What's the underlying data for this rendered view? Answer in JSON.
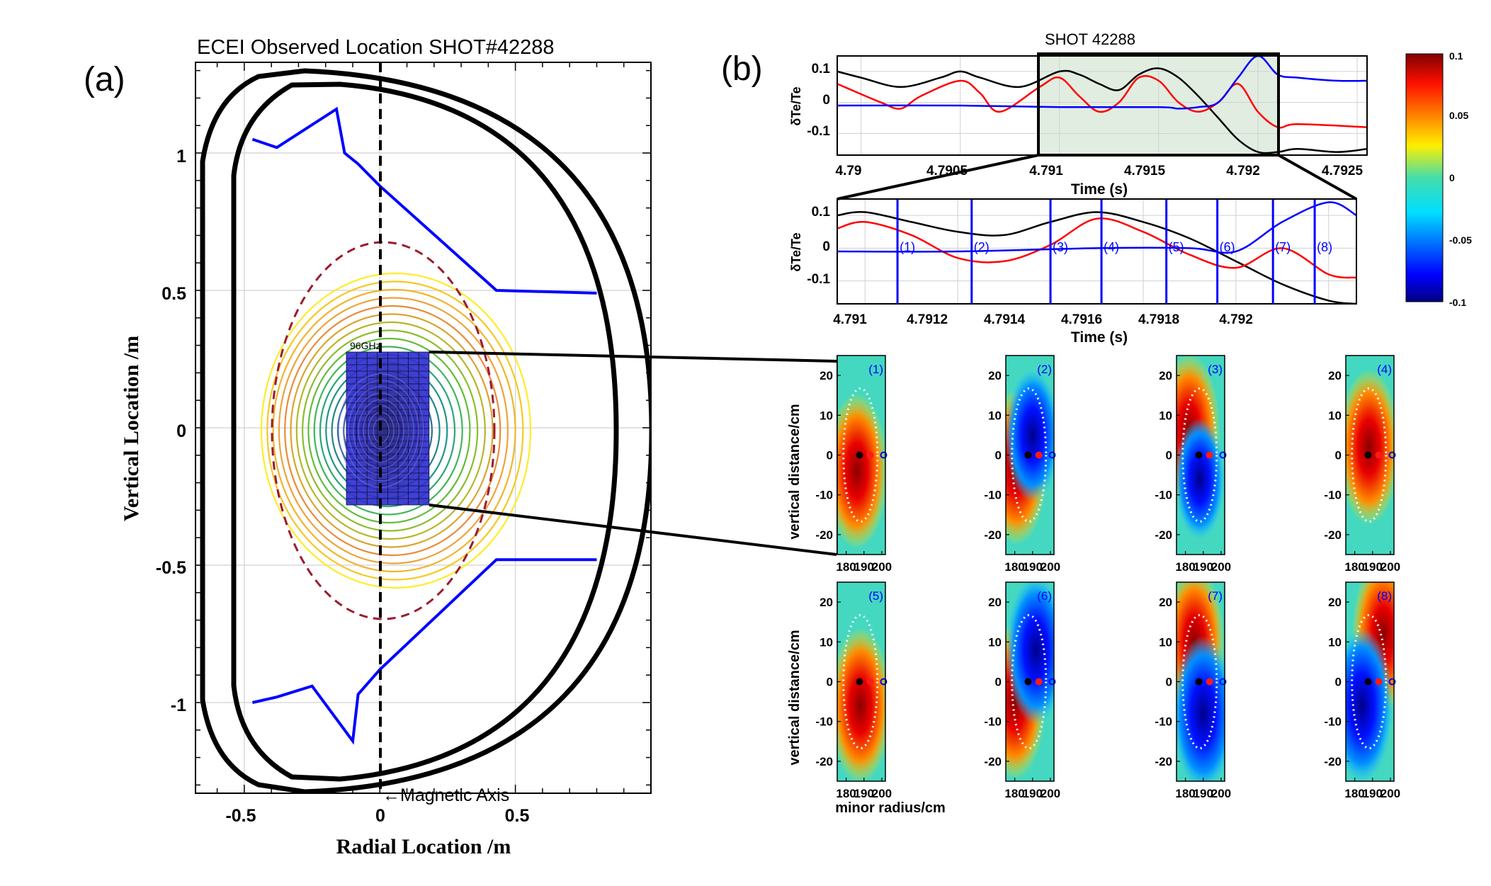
{
  "panel_a": {
    "label": "(a)",
    "title": "ECEI  Observed Location    SHOT#42288",
    "xlabel": "Radial Location  /m",
    "ylabel": "Vertical Location  /m",
    "x_ticks": [
      "-0.5",
      "0",
      "0.5"
    ],
    "y_ticks": [
      "1",
      "0.5",
      "0",
      "-0.5",
      "-1"
    ],
    "freq_label": "96GHz",
    "axis_annotation": "←Magnetic Axis"
  },
  "panel_b": {
    "label": "(b)",
    "shot_title": "SHOT  42288",
    "trace_top": {
      "ylabel": "δTe/Te",
      "xlabel": "Time (s)",
      "x_ticks": [
        "4.79",
        "4.7905",
        "4.791",
        "4.7915",
        "4.792",
        "4.7925"
      ],
      "y_ticks": [
        "0.1",
        "0",
        "-0.1"
      ]
    },
    "trace_zoom": {
      "ylabel": "δTe/Te",
      "xlabel": "Time (s)",
      "x_ticks": [
        "4.791",
        "4.7912",
        "4.7914",
        "4.7916",
        "4.7918",
        "4.792"
      ],
      "y_ticks": [
        "0.1",
        "0",
        "-0.1"
      ],
      "markers": [
        "(1)",
        "(2)",
        "(3)",
        "(4)",
        "(5)",
        "(6)",
        "(7)",
        "(8)"
      ]
    },
    "colorbar_ticks": [
      "0.1",
      "0.05",
      "0",
      "-0.05",
      "-0.1"
    ],
    "image_ylabel": "vertical distance/cm",
    "image_xlabel": "minor radius/cm",
    "image_x_ticks": [
      "180",
      "190",
      "200"
    ],
    "image_y_ticks": [
      "20",
      "10",
      "0",
      "-10",
      "-20"
    ],
    "image_labels": [
      "(1)",
      "(2)",
      "(3)",
      "(4)",
      "(5)",
      "(6)",
      "(7)",
      "(8)"
    ]
  },
  "colors": {
    "black_trace": "#000000",
    "red_trace": "#ff0000",
    "blue_trace": "#0000ff",
    "highlight": "#e2ede1"
  },
  "chart_data": [
    {
      "type": "line",
      "title": "ECEI  Observed Location    SHOT#42288",
      "xlabel": "Radial Location  /m",
      "ylabel": "Vertical Location  /m",
      "xlim": [
        -0.68,
        1.0
      ],
      "ylim": [
        -1.33,
        1.33
      ],
      "grid": true,
      "series": [
        {
          "values": [
            [
              -0.47,
              1.05
            ],
            [
              -0.38,
              1.02
            ],
            [
              -0.16,
              1.16
            ],
            [
              -0.13,
              1.0
            ],
            [
              -0.08,
              0.96
            ],
            [
              0.0,
              0.88
            ],
            [
              0.43,
              0.5
            ],
            [
              0.8,
              0.49
            ]
          ]
        },
        {
          "values": [
            [
              -0.47,
              -1.0
            ],
            [
              -0.38,
              -0.98
            ],
            [
              -0.25,
              -0.94
            ],
            [
              -0.1,
              -1.14
            ],
            [
              -0.08,
              -0.97
            ],
            [
              0.0,
              -0.88
            ],
            [
              0.43,
              -0.48
            ],
            [
              0.8,
              -0.48
            ]
          ]
        }
      ]
    },
    {
      "type": "line",
      "xlabel": "Time (s)",
      "ylabel": "δTe/Te",
      "xlim": [
        4.78988,
        4.79255
      ],
      "ylim": [
        -0.17,
        0.15
      ],
      "grid": true,
      "series": [
        {
          "x": [
            4.78988,
            4.79,
            4.7902,
            4.7904,
            4.7905,
            4.7906,
            4.7908,
            4.791,
            4.7911,
            4.7912,
            4.7913,
            4.7914,
            4.7915,
            4.7916,
            4.7917,
            4.7918,
            4.7919,
            4.792,
            4.7921,
            4.7922,
            4.7924,
            4.79255
          ],
          "values": [
            0.1,
            0.08,
            0.05,
            0.08,
            0.1,
            0.08,
            0.05,
            0.1,
            0.09,
            0.06,
            0.04,
            0.09,
            0.11,
            0.08,
            0.02,
            -0.05,
            -0.12,
            -0.16,
            -0.16,
            -0.15,
            -0.16,
            -0.15
          ]
        },
        {
          "x": [
            4.78988,
            4.7901,
            4.7902,
            4.7903,
            4.7905,
            4.7906,
            4.7907,
            4.7909,
            4.791,
            4.7911,
            4.7912,
            4.7913,
            4.7914,
            4.7915,
            4.7916,
            4.7917,
            4.7918,
            4.7919,
            4.792,
            4.7921,
            4.7922,
            4.79255
          ],
          "values": [
            0.06,
            0.0,
            -0.02,
            0.02,
            0.07,
            0.03,
            -0.03,
            0.05,
            0.08,
            0.02,
            -0.03,
            0.0,
            0.08,
            0.07,
            0.0,
            -0.03,
            0.0,
            0.06,
            -0.03,
            -0.08,
            -0.07,
            -0.08
          ]
        },
        {
          "x": [
            4.78988,
            4.7905,
            4.791,
            4.7915,
            4.7916,
            4.7917,
            4.7918,
            4.7919,
            4.792,
            4.7921,
            4.7922,
            4.7924,
            4.79255
          ],
          "values": [
            -0.01,
            -0.01,
            -0.015,
            -0.015,
            -0.02,
            -0.015,
            0.0,
            0.08,
            0.15,
            0.09,
            0.08,
            0.07,
            0.07
          ]
        }
      ]
    },
    {
      "type": "line",
      "xlabel": "Time (s)",
      "ylabel": "δTe/Te",
      "xlim": [
        4.79094,
        4.79206
      ],
      "ylim": [
        -0.17,
        0.15
      ],
      "grid": true,
      "series": [
        {
          "x": [
            4.79094,
            4.791,
            4.7911,
            4.7912,
            4.7913,
            4.7914,
            4.7915,
            4.7916,
            4.7917,
            4.7918,
            4.7919,
            4.792,
            4.79206
          ],
          "values": [
            0.1,
            0.11,
            0.08,
            0.05,
            0.04,
            0.08,
            0.11,
            0.08,
            0.03,
            -0.04,
            -0.11,
            -0.16,
            -0.17
          ]
        },
        {
          "x": [
            4.79094,
            4.791,
            4.7911,
            4.7912,
            4.7913,
            4.7914,
            4.7915,
            4.7916,
            4.7917,
            4.7918,
            4.7919,
            4.792,
            4.79206
          ],
          "values": [
            0.06,
            0.08,
            0.04,
            -0.03,
            -0.04,
            0.01,
            0.09,
            0.05,
            -0.02,
            -0.06,
            0.0,
            -0.08,
            -0.09
          ]
        },
        {
          "x": [
            4.79094,
            4.7912,
            4.7915,
            4.7917,
            4.7918,
            4.7919,
            4.792,
            4.79206
          ],
          "values": [
            -0.01,
            -0.01,
            0.0,
            0.0,
            -0.01,
            0.08,
            0.14,
            0.1
          ]
        }
      ],
      "annotations": [
        {
          "label": "(1)",
          "x": 4.79107
        },
        {
          "label": "(2)",
          "x": 4.79123
        },
        {
          "label": "(3)",
          "x": 4.7914
        },
        {
          "label": "(4)",
          "x": 4.79151
        },
        {
          "label": "(5)",
          "x": 4.79165
        },
        {
          "label": "(6)",
          "x": 4.79176
        },
        {
          "label": "(7)",
          "x": 4.79188
        },
        {
          "label": "(8)",
          "x": 4.79197
        }
      ]
    },
    {
      "type": "heatmap",
      "xlabel": "minor radius/cm",
      "ylabel": "vertical distance/cm",
      "xlim": [
        175,
        202
      ],
      "ylim": [
        -25,
        25
      ],
      "colorbar": {
        "min": -0.1,
        "max": 0.1
      },
      "frames": [
        {
          "label": "(1)",
          "blobs": [
            {
              "x": 186,
              "y": -4,
              "value": 0.1
            }
          ]
        },
        {
          "label": "(2)",
          "blobs": [
            {
              "x": 181,
              "y": -3,
              "value": 0.1
            },
            {
              "x": 190,
              "y": 5,
              "value": -0.06
            }
          ]
        },
        {
          "label": "(3)",
          "blobs": [
            {
              "x": 182,
              "y": 6,
              "value": 0.1
            },
            {
              "x": 188,
              "y": -6,
              "value": -0.04
            }
          ]
        },
        {
          "label": "(4)",
          "blobs": [
            {
              "x": 188,
              "y": 2,
              "value": 0.1
            }
          ]
        },
        {
          "label": "(5)",
          "blobs": [
            {
              "x": 188,
              "y": -6,
              "value": 0.1
            }
          ]
        },
        {
          "label": "(6)",
          "blobs": [
            {
              "x": 180,
              "y": -5,
              "value": 0.1
            },
            {
              "x": 192,
              "y": 8,
              "value": -0.09
            }
          ]
        },
        {
          "label": "(7)",
          "blobs": [
            {
              "x": 185,
              "y": 10,
              "value": 0.09
            },
            {
              "x": 190,
              "y": -8,
              "value": -0.1
            }
          ]
        },
        {
          "label": "(8)",
          "blobs": [
            {
              "x": 196,
              "y": 12,
              "value": 0.1
            },
            {
              "x": 184,
              "y": -6,
              "value": -0.1
            }
          ]
        }
      ]
    }
  ]
}
